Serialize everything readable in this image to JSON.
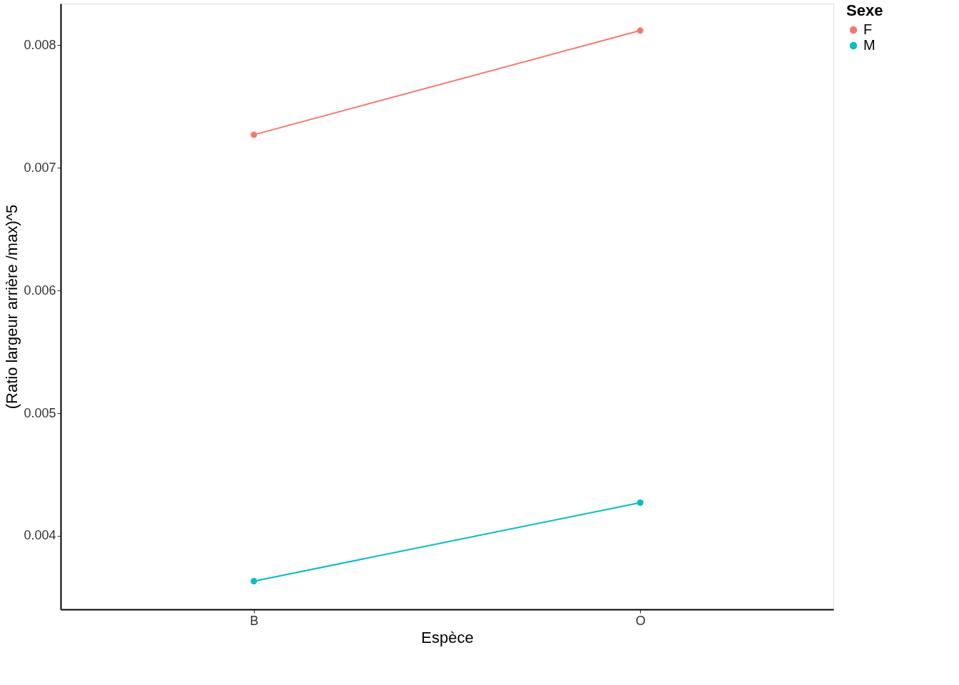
{
  "chart_data": {
    "type": "line",
    "xlabel": "Espèce",
    "ylabel": "(Ratio largeur arrière /max)^5",
    "legend_title": "Sexe",
    "categories": [
      "B",
      "O"
    ],
    "series": [
      {
        "name": "F",
        "color": "#f8766d",
        "values": [
          0.00727,
          0.00812
        ]
      },
      {
        "name": "M",
        "color": "#00bfc4",
        "values": [
          0.00363,
          0.00427
        ]
      }
    ],
    "ylim": [
      0.0034,
      0.00834
    ],
    "yticks": [
      0.004,
      0.005,
      0.006,
      0.007,
      0.008
    ],
    "grid": false,
    "legend": "right",
    "marker": "circle",
    "line_style": "solid"
  }
}
